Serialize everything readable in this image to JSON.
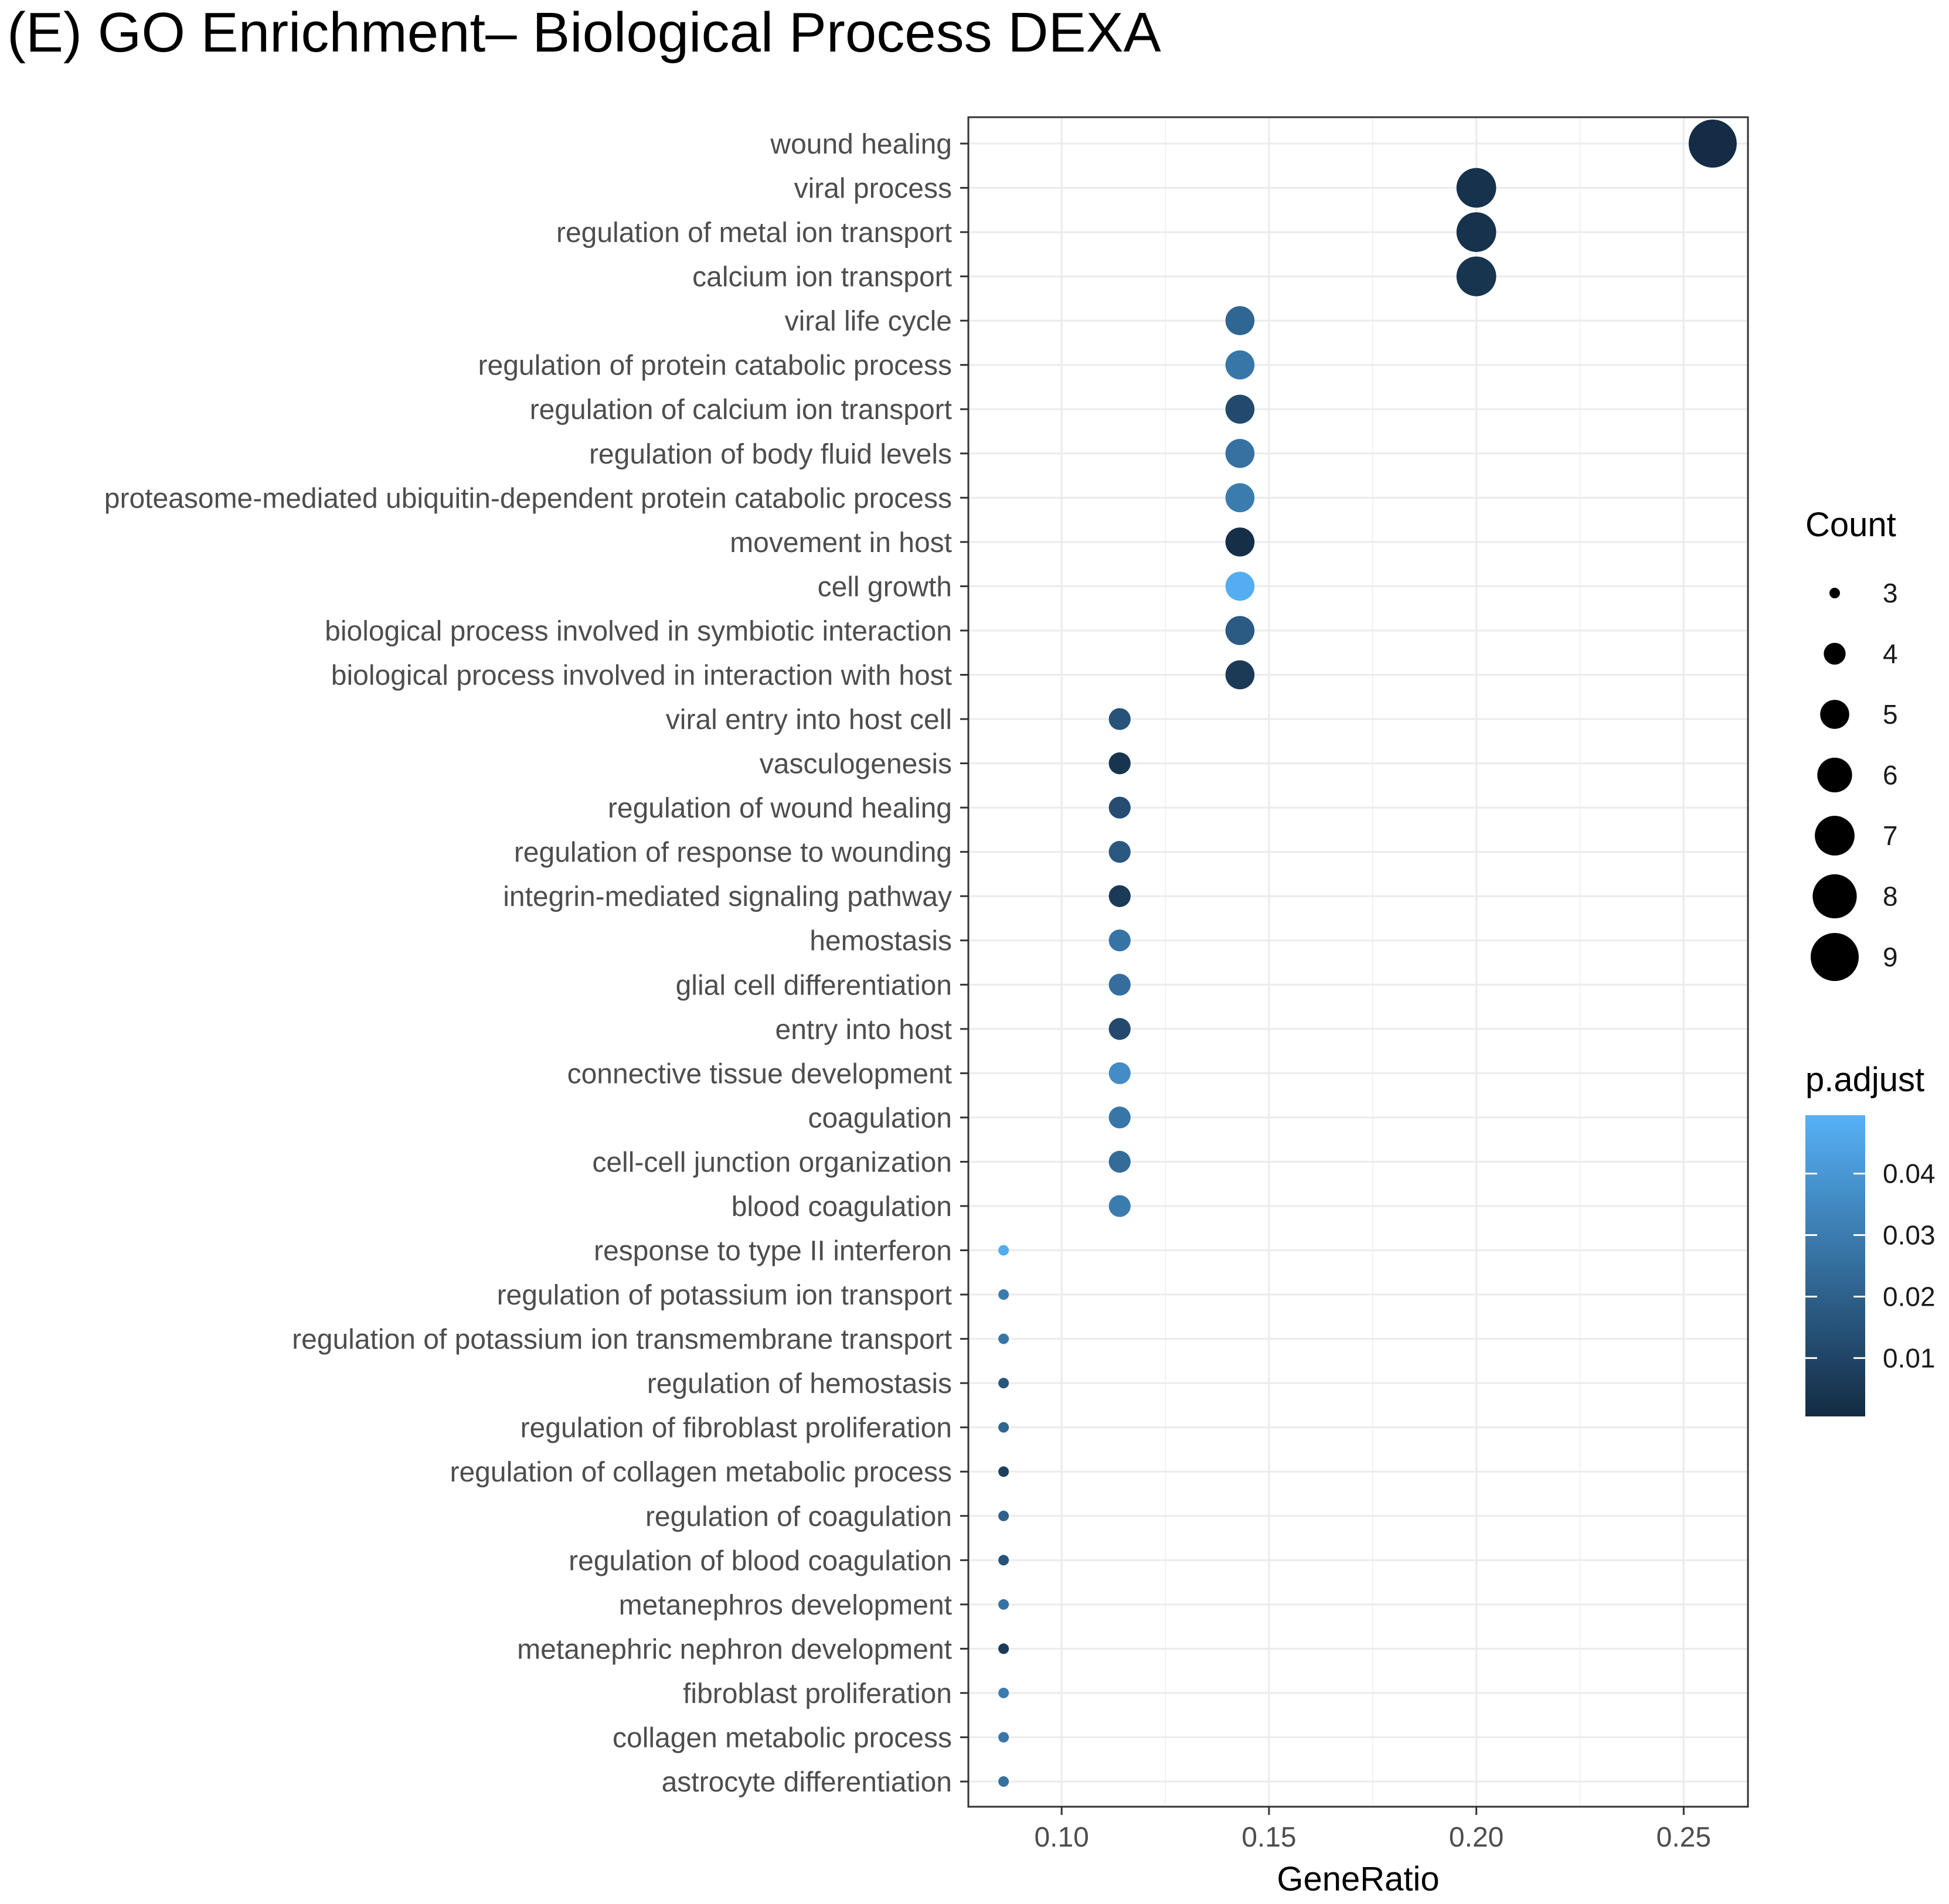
{
  "chart_data": {
    "type": "scatter",
    "title": "(E) GO Enrichment– Biological Process DEXA",
    "xlabel": "GeneRatio",
    "ylabel": "",
    "xlim": [
      0.0775,
      0.2655
    ],
    "x_ticks": [
      0.1,
      0.15,
      0.2,
      0.25
    ],
    "x_tick_labels": [
      "0.10",
      "0.15",
      "0.20",
      "0.25"
    ],
    "grid": true,
    "categories": [
      "wound healing",
      "viral process",
      "regulation of metal ion transport",
      "calcium ion transport",
      "viral life cycle",
      "regulation of protein catabolic process",
      "regulation of calcium ion transport",
      "regulation of body fluid levels",
      "proteasome-mediated ubiquitin-dependent protein catabolic process",
      "movement in host",
      "cell growth",
      "biological process involved in symbiotic interaction",
      "biological process involved in interaction with host",
      "viral entry into host cell",
      "vasculogenesis",
      "regulation of wound healing",
      "regulation of response to wounding",
      "integrin-mediated signaling pathway",
      "hemostasis",
      "glial cell differentiation",
      "entry into host",
      "connective tissue development",
      "coagulation",
      "cell-cell junction organization",
      "blood coagulation",
      "response to type II interferon",
      "regulation of potassium ion transport",
      "regulation of potassium ion transmembrane transport",
      "regulation of hemostasis",
      "regulation of fibroblast proliferation",
      "regulation of collagen metabolic process",
      "regulation of coagulation",
      "regulation of blood coagulation",
      "metanephros development",
      "metanephric nephron development",
      "fibroblast proliferation",
      "collagen metabolic process",
      "astrocyte differentiation"
    ],
    "gene_ratio": [
      0.257,
      0.2,
      0.2,
      0.2,
      0.143,
      0.143,
      0.143,
      0.143,
      0.143,
      0.143,
      0.143,
      0.143,
      0.143,
      0.114,
      0.114,
      0.114,
      0.114,
      0.114,
      0.114,
      0.114,
      0.114,
      0.114,
      0.114,
      0.114,
      0.114,
      0.086,
      0.086,
      0.086,
      0.086,
      0.086,
      0.086,
      0.086,
      0.086,
      0.086,
      0.086,
      0.086,
      0.086,
      0.086
    ],
    "count": [
      9,
      7,
      7,
      7,
      5,
      5,
      5,
      5,
      5,
      5,
      5,
      5,
      5,
      4,
      4,
      4,
      4,
      4,
      4,
      4,
      4,
      4,
      4,
      4,
      4,
      3,
      3,
      3,
      3,
      3,
      3,
      3,
      3,
      3,
      3,
      3,
      3,
      3
    ],
    "p_adjust": [
      0.001,
      0.003,
      0.003,
      0.004,
      0.022,
      0.028,
      0.012,
      0.026,
      0.03,
      0.002,
      0.048,
      0.018,
      0.006,
      0.015,
      0.004,
      0.013,
      0.017,
      0.006,
      0.027,
      0.025,
      0.012,
      0.036,
      0.028,
      0.024,
      0.03,
      0.048,
      0.03,
      0.028,
      0.016,
      0.022,
      0.008,
      0.02,
      0.015,
      0.026,
      0.006,
      0.03,
      0.028,
      0.026
    ],
    "legend_count": {
      "title": "Count",
      "values": [
        3,
        4,
        5,
        6,
        7,
        8,
        9
      ],
      "labels": [
        "3",
        "4",
        "5",
        "6",
        "7",
        "8",
        "9"
      ]
    },
    "legend_padjust": {
      "title": "p.adjust",
      "min": 0.0005,
      "max": 0.0495,
      "ticks": [
        0.04,
        0.03,
        0.02,
        0.01
      ],
      "tick_labels": [
        "0.04",
        "0.03",
        "0.02",
        "0.01"
      ],
      "low_color": "#132b43",
      "high_color": "#56b1f7"
    },
    "legend_position": "right"
  }
}
